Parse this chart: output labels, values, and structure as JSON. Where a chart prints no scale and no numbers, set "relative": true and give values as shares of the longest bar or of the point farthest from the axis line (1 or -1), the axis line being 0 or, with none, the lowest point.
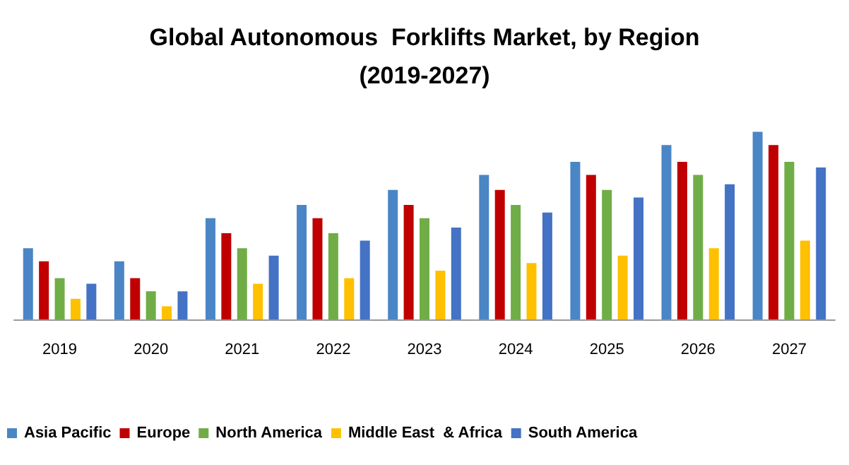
{
  "chart_data": {
    "type": "bar",
    "title": "Global Autonomous  Forklifts Market, by Region\n(2019-2027)",
    "relative": true,
    "categories": [
      "2019",
      "2020",
      "2021",
      "2022",
      "2023",
      "2024",
      "2025",
      "2026",
      "2027"
    ],
    "series": [
      {
        "name": "Asia Pacific",
        "color": "#4a86c5",
        "values": [
          0.38,
          0.31,
          0.54,
          0.61,
          0.69,
          0.77,
          0.84,
          0.93,
          1
        ]
      },
      {
        "name": "Europe",
        "color": "#c00000",
        "values": [
          0.31,
          0.22,
          0.46,
          0.54,
          0.61,
          0.69,
          0.77,
          0.84,
          0.93
        ]
      },
      {
        "name": "North America",
        "color": "#70ad47",
        "values": [
          0.22,
          0.15,
          0.38,
          0.46,
          0.54,
          0.61,
          0.69,
          0.77,
          0.84
        ]
      },
      {
        "name": "Middle East  & Africa",
        "color": "#ffc000",
        "values": [
          0.11,
          0.07,
          0.19,
          0.22,
          0.26,
          0.3,
          0.34,
          0.38,
          0.42
        ]
      },
      {
        "name": "South America",
        "color": "#4472c4",
        "values": [
          0.19,
          0.15,
          0.34,
          0.42,
          0.49,
          0.57,
          0.65,
          0.72,
          0.81
        ]
      }
    ],
    "legend": "bottom left"
  }
}
